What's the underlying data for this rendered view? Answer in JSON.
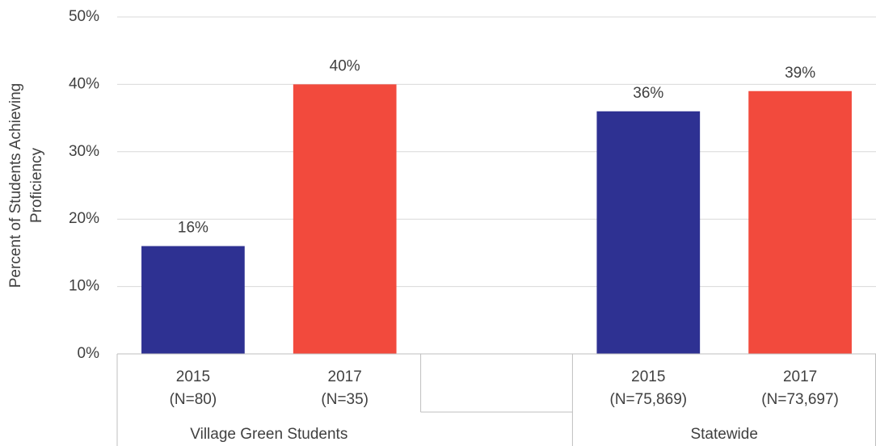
{
  "chart_data": {
    "type": "bar",
    "ylabel": [
      "Percent of Students Achieving",
      "Proficiency"
    ],
    "categories": [
      "2015",
      "2017",
      null,
      "2015",
      "2017"
    ],
    "category_notes": [
      "(N=80)",
      "(N=35)",
      null,
      "(N=75,869)",
      "(N=73,697)"
    ],
    "groups": [
      "Village Green Students",
      "Statewide"
    ],
    "values": [
      16,
      40,
      null,
      36,
      39
    ],
    "value_labels": [
      "16%",
      "40%",
      null,
      "36%",
      "39%"
    ],
    "colors": [
      "#2e3192",
      "#f24a3d",
      null,
      "#2e3192",
      "#f24a3d"
    ],
    "ylim": [
      0,
      50
    ],
    "yticks": [
      {
        "value": 0,
        "label": "0%"
      },
      {
        "value": 10,
        "label": "10%"
      },
      {
        "value": 20,
        "label": "20%"
      },
      {
        "value": 30,
        "label": "30%"
      },
      {
        "value": 40,
        "label": "40%"
      },
      {
        "value": 50,
        "label": "50%"
      }
    ],
    "grid": true
  }
}
